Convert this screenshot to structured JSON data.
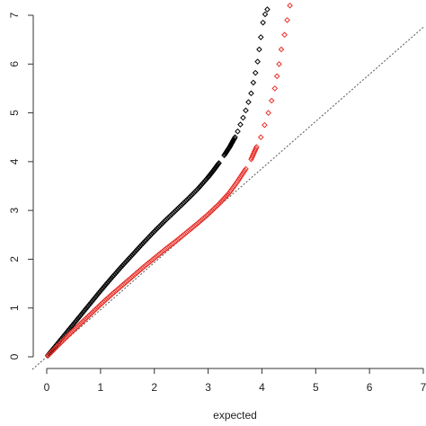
{
  "chart_data": {
    "type": "scatter",
    "title": "",
    "xlabel": "expected",
    "ylabel": "",
    "xlim": [
      0,
      7
    ],
    "ylim": [
      0,
      7.3
    ],
    "xticks": [
      "0",
      "1",
      "2",
      "3",
      "4",
      "5",
      "6",
      "7"
    ],
    "yticks": [
      "0",
      "1",
      "2",
      "3",
      "4",
      "5",
      "6",
      "7"
    ],
    "grid": false,
    "legend": "none",
    "reference_line": {
      "style": "dotted",
      "color": "#555555",
      "from": [
        0,
        0
      ],
      "to": [
        7,
        7
      ]
    },
    "series": [
      {
        "color": "#000000",
        "marker": "open-diamond",
        "points": [
          [
            0.02,
            0.03
          ],
          [
            0.2,
            0.27
          ],
          [
            0.4,
            0.54
          ],
          [
            0.6,
            0.81
          ],
          [
            0.8,
            1.08
          ],
          [
            1.0,
            1.35
          ],
          [
            1.2,
            1.61
          ],
          [
            1.4,
            1.86
          ],
          [
            1.6,
            2.1
          ],
          [
            1.8,
            2.34
          ],
          [
            2.0,
            2.57
          ],
          [
            2.2,
            2.79
          ],
          [
            2.4,
            3.0
          ],
          [
            2.6,
            3.21
          ],
          [
            2.8,
            3.43
          ],
          [
            3.0,
            3.68
          ],
          [
            3.1,
            3.82
          ],
          [
            3.2,
            3.97
          ],
          [
            3.3,
            4.13
          ],
          [
            3.4,
            4.3
          ],
          [
            3.5,
            4.5
          ],
          [
            3.55,
            4.62
          ],
          [
            3.6,
            4.76
          ],
          [
            3.65,
            4.9
          ],
          [
            3.7,
            5.05
          ],
          [
            3.75,
            5.22
          ],
          [
            3.8,
            5.4
          ],
          [
            3.84,
            5.62
          ],
          [
            3.88,
            5.82
          ],
          [
            3.92,
            6.05
          ],
          [
            3.95,
            6.3
          ],
          [
            3.98,
            6.55
          ],
          [
            4.02,
            6.85
          ],
          [
            4.06,
            7.02
          ],
          [
            4.1,
            7.12
          ]
        ]
      },
      {
        "color": "#e8302a",
        "marker": "open-diamond",
        "points": [
          [
            0.02,
            0.02
          ],
          [
            0.2,
            0.22
          ],
          [
            0.4,
            0.44
          ],
          [
            0.6,
            0.65
          ],
          [
            0.8,
            0.86
          ],
          [
            1.0,
            1.07
          ],
          [
            1.2,
            1.27
          ],
          [
            1.4,
            1.46
          ],
          [
            1.6,
            1.65
          ],
          [
            1.8,
            1.84
          ],
          [
            2.0,
            2.02
          ],
          [
            2.2,
            2.2
          ],
          [
            2.4,
            2.37
          ],
          [
            2.6,
            2.55
          ],
          [
            2.8,
            2.73
          ],
          [
            3.0,
            2.92
          ],
          [
            3.2,
            3.13
          ],
          [
            3.4,
            3.37
          ],
          [
            3.55,
            3.6
          ],
          [
            3.7,
            3.85
          ],
          [
            3.8,
            4.05
          ],
          [
            3.9,
            4.3
          ],
          [
            3.98,
            4.5
          ],
          [
            4.05,
            4.75
          ],
          [
            4.12,
            5.0
          ],
          [
            4.18,
            5.25
          ],
          [
            4.24,
            5.5
          ],
          [
            4.28,
            5.75
          ],
          [
            4.32,
            6.0
          ],
          [
            4.36,
            6.3
          ],
          [
            4.42,
            6.6
          ],
          [
            4.47,
            6.9
          ],
          [
            4.52,
            7.2
          ]
        ]
      }
    ]
  }
}
